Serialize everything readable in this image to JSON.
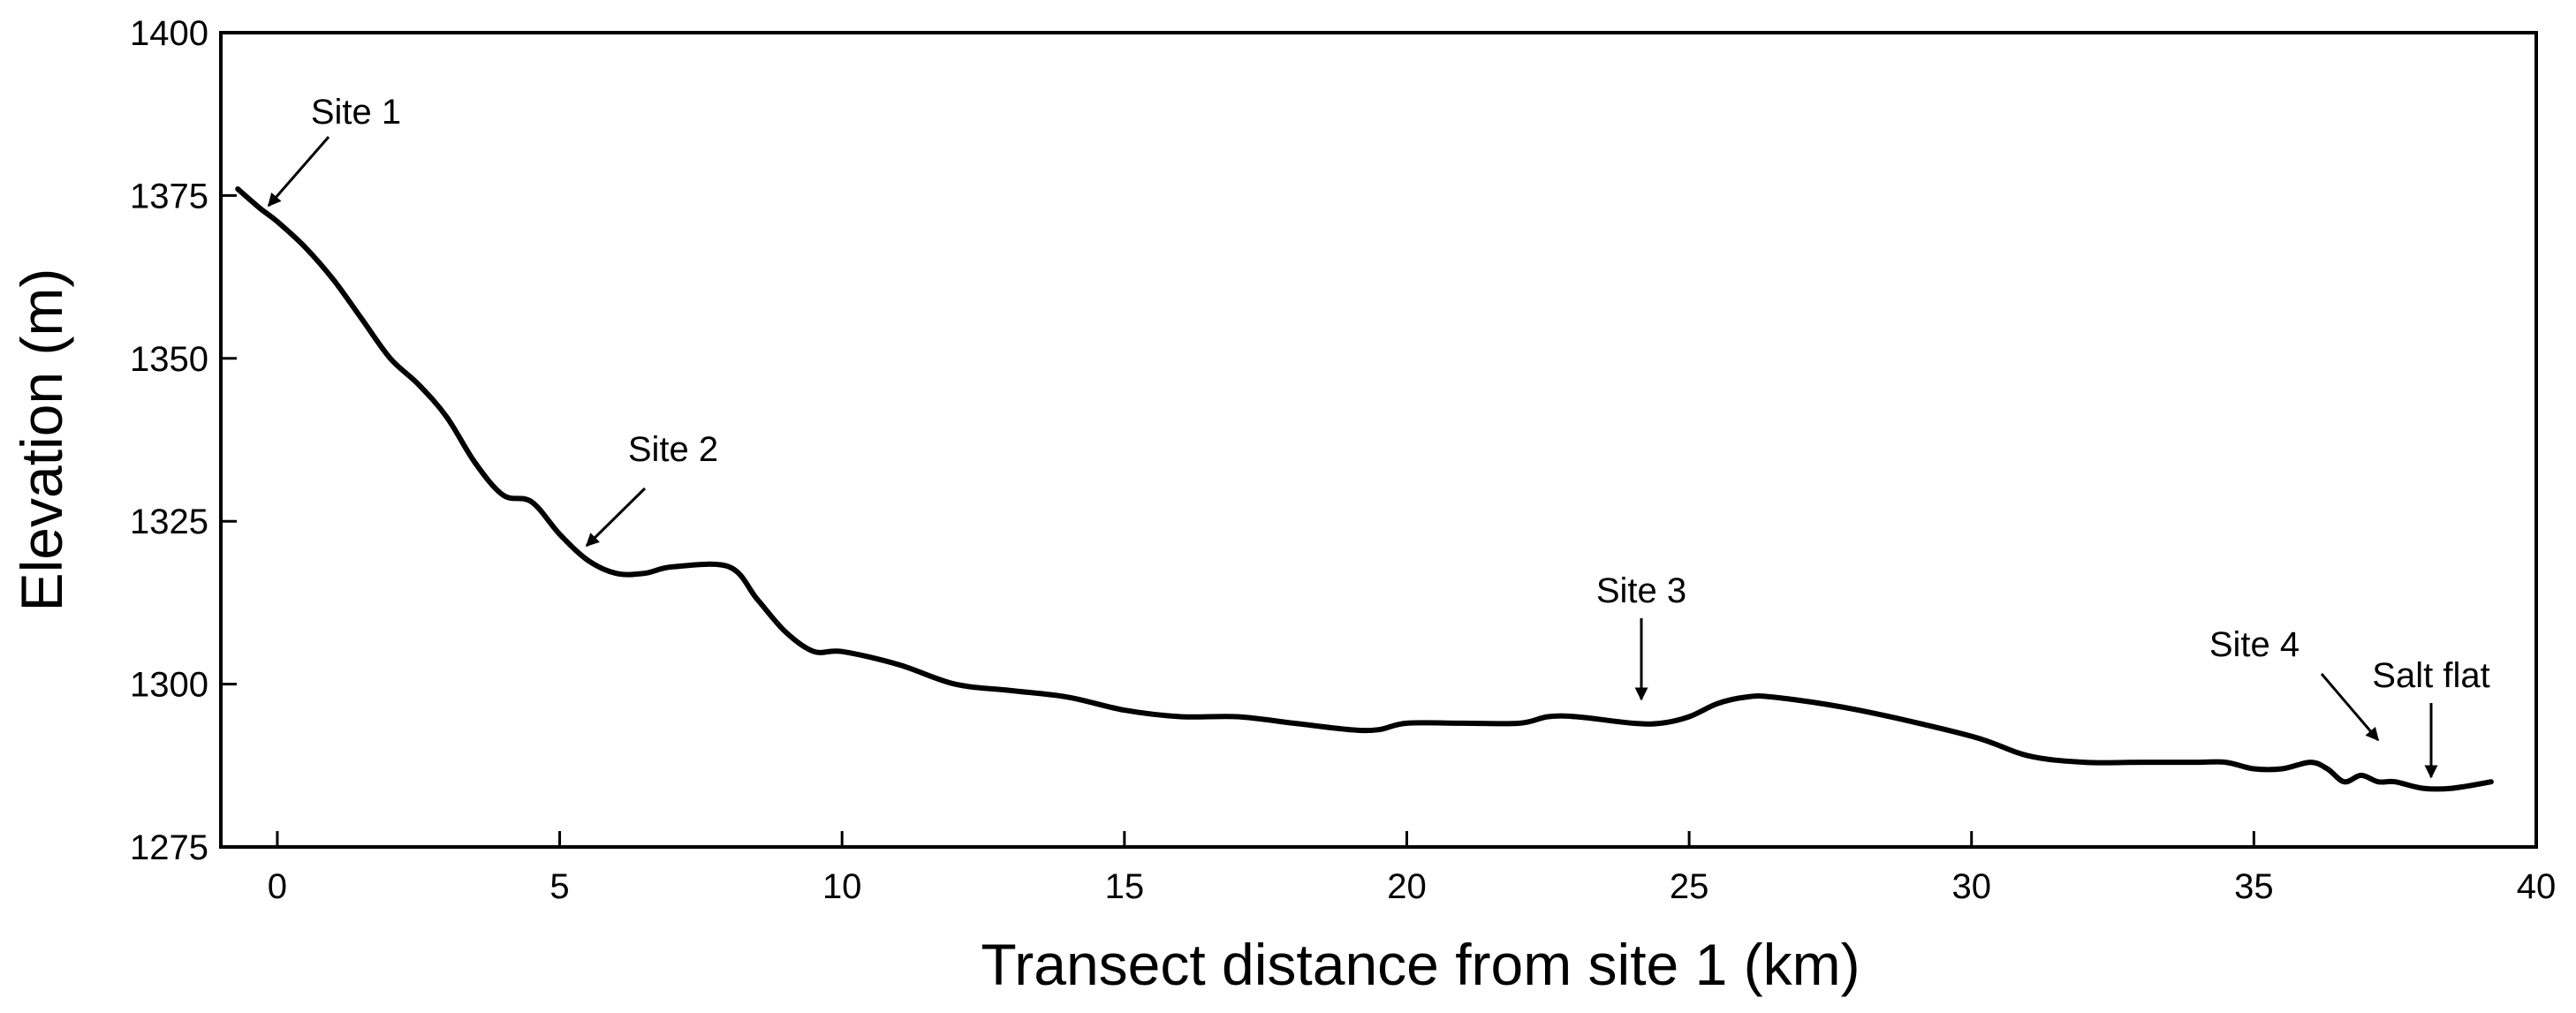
{
  "chart_data": {
    "type": "line",
    "xlabel": "Transect distance from site 1 (km)",
    "ylabel": "Elevation (m)",
    "xlim": [
      -1,
      40
    ],
    "ylim": [
      1275,
      1400
    ],
    "xticks": [
      0,
      5,
      10,
      15,
      20,
      25,
      30,
      35,
      40
    ],
    "yticks": [
      1275,
      1300,
      1325,
      1350,
      1375,
      1400
    ],
    "grid": false,
    "series": [
      {
        "x": [
          -0.7,
          -0.3,
          0,
          0.5,
          1,
          1.5,
          2,
          2.5,
          3,
          3.5,
          4,
          4.5,
          5,
          5.5,
          6,
          6.5,
          7,
          8,
          8.5,
          9,
          9.5,
          10,
          11,
          12,
          13,
          14,
          15,
          16,
          17,
          18,
          19,
          19.5,
          20,
          21,
          22,
          22.5,
          23,
          24,
          24.5,
          25,
          25.5,
          26,
          26.5,
          28,
          30,
          31,
          32,
          33,
          34,
          34.5,
          35,
          35.5,
          36,
          36.3,
          36.6,
          36.9,
          37.2,
          37.5,
          38,
          38.5,
          39.2
        ],
        "y": [
          1376,
          1373,
          1371,
          1367,
          1362,
          1356,
          1350,
          1346,
          1341,
          1334,
          1329,
          1328,
          1323,
          1319,
          1317,
          1317,
          1318,
          1318,
          1313,
          1308,
          1305,
          1305,
          1303,
          1300,
          1299,
          1298,
          1296,
          1295,
          1295,
          1294,
          1293,
          1293,
          1294,
          1294,
          1294,
          1295,
          1295,
          1294,
          1294,
          1295,
          1297,
          1298,
          1298,
          1296,
          1292,
          1289,
          1288,
          1288,
          1288,
          1288,
          1287,
          1287,
          1288,
          1287,
          1285,
          1286,
          1285,
          1285,
          1284,
          1284,
          1285
        ]
      }
    ],
    "annotations": [
      {
        "text": "Site 1",
        "x": 0
      },
      {
        "text": "Site 2",
        "x": 5.5
      },
      {
        "text": "Site 3",
        "x": 24.3
      },
      {
        "text": "Site 4",
        "x": 37.2
      },
      {
        "text": "Salt flat",
        "x": 38.2
      }
    ]
  }
}
